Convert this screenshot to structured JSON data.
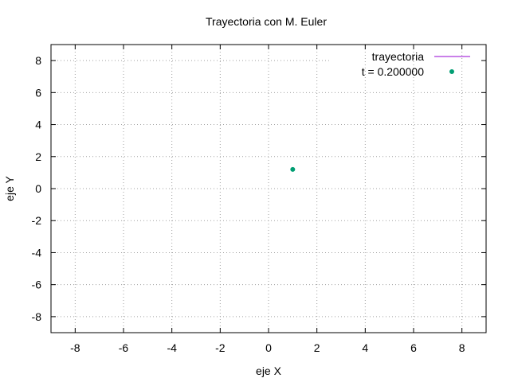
{
  "chart_data": {
    "type": "scatter",
    "title": "Trayectoria con M. Euler",
    "xlabel": "eje X",
    "ylabel": "eje Y",
    "xlim": [
      -9,
      9
    ],
    "ylim": [
      -9,
      9
    ],
    "xticks": [
      -8,
      -6,
      -4,
      -2,
      0,
      2,
      4,
      6,
      8
    ],
    "yticks": [
      -8,
      -6,
      -4,
      -2,
      0,
      2,
      4,
      6,
      8
    ],
    "grid": true,
    "legend_position": "top-right",
    "series": [
      {
        "name": "trayectoria",
        "style": "line",
        "color": "#9400d3",
        "points": []
      },
      {
        "name": "t = 0.200000",
        "style": "points",
        "color": "#009e73",
        "points": [
          {
            "x": 1.0,
            "y": 1.2
          }
        ]
      }
    ]
  }
}
